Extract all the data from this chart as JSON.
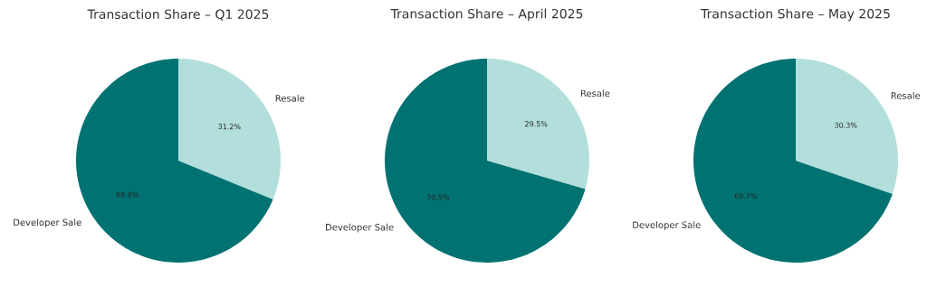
{
  "chart_data": [
    {
      "type": "pie",
      "title": "Transaction Share – Q1 2025",
      "categories": [
        "Resale",
        "Developer Sale"
      ],
      "values": [
        31.2,
        68.8
      ],
      "colors": [
        "#b2dfdb",
        "#007272"
      ],
      "value_labels": [
        "31.2%",
        "68.8%"
      ]
    },
    {
      "type": "pie",
      "title": "Transaction Share – April 2025",
      "categories": [
        "Resale",
        "Developer Sale"
      ],
      "values": [
        29.5,
        70.5
      ],
      "colors": [
        "#b2dfdb",
        "#007272"
      ],
      "value_labels": [
        "29.5%",
        "70.5%"
      ]
    },
    {
      "type": "pie",
      "title": "Transaction Share – May 2025",
      "categories": [
        "Resale",
        "Developer Sale"
      ],
      "values": [
        30.3,
        69.7
      ],
      "colors": [
        "#b2dfdb",
        "#007272"
      ],
      "value_labels": [
        "30.3%",
        "69.7%"
      ]
    }
  ]
}
